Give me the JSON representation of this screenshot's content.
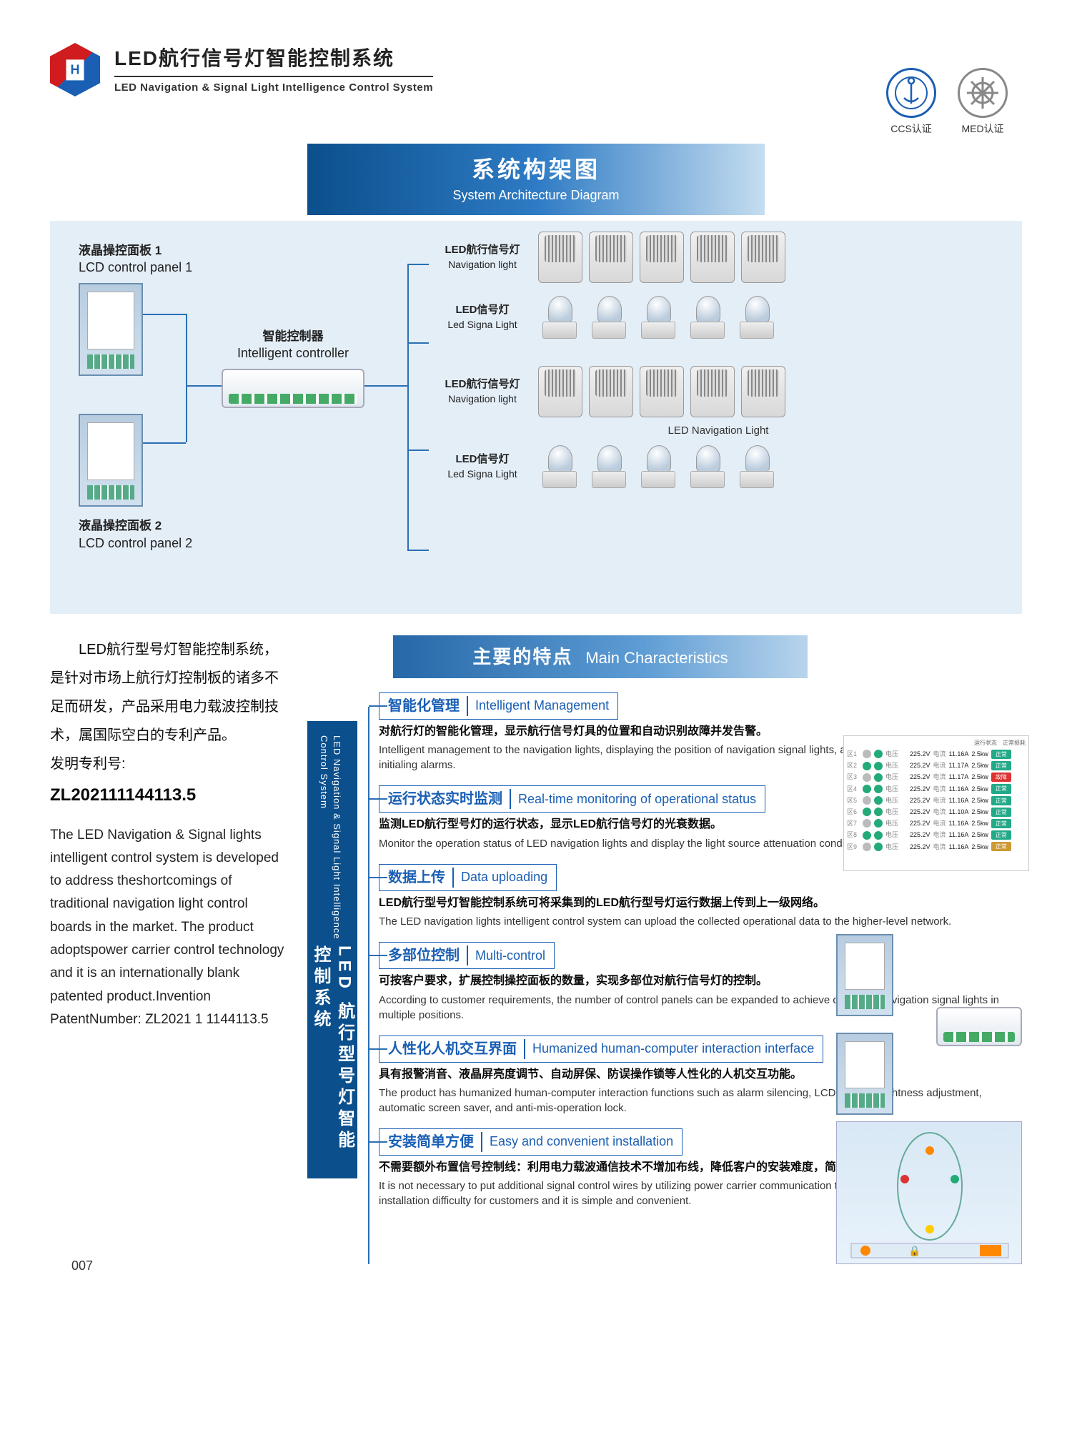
{
  "header": {
    "logo_letter": "H",
    "title_cn": "LED航行信号灯智能控制系统",
    "title_en": "LED Navigation & Signal Light Intelligence Control System"
  },
  "banner": {
    "cn": "系统构架图",
    "en": "System Architecture Diagram"
  },
  "certs": {
    "ccs": "CCS认证",
    "med": "MED认证"
  },
  "diagram": {
    "panel1_cn": "液晶操控面板 1",
    "panel1_en": "LCD control panel 1",
    "panel2_cn": "液晶操控面板 2",
    "panel2_en": "LCD control panel 2",
    "controller_cn": "智能控制器",
    "controller_en": "Intelligent controller",
    "nav_cn": "LED航行信号灯",
    "nav_en": "Navigation light",
    "sig_cn": "LED信号灯",
    "sig_en": "Led Signa  Light",
    "caption_nav": "LED  Navigation Light",
    "lights_per_row": 5
  },
  "intro": {
    "p1_cn": "　　LED航行型号灯智能控制系统，是针对市场上航行灯控制板的诸多不足而研发，产品采用电力载波控制技术，属国际空白的专利产品。",
    "patent_label": "发明专利号:",
    "patent_number": "ZL202111144113.5",
    "p1_en": "The LED Navigation & Signal lights intelligent control system is developed to address theshortcomings of traditional navigation light control boards in the market. The product adoptspower carrier control technology and it is an internationally blank patented product.Invention PatentNumber: ZL2021 1 1144113.5"
  },
  "sub_banner": {
    "cn": "主要的特点",
    "en": "Main Characteristics"
  },
  "vert_bar": {
    "cn": "LED 航行型号灯智能控制系统",
    "en": "LED Navigation & Signal Light Intelligence Control System"
  },
  "features": [
    {
      "title_cn": "智能化管理",
      "title_en": "Intelligent Management",
      "desc_cn": "对航行灯的智能化管理，显示航行信号灯具的位置和自动识别故障并发告警。",
      "desc_en": "Intelligent management to the navigation lights, displaying the position of navigation signal lights, automatically identifying faults, and initialing alarms."
    },
    {
      "title_cn": "运行状态实时监测",
      "title_en": "Real-time monitoring of operational status",
      "desc_cn": "监测LED航行型号灯的运行状态，显示LED航行信号灯的光衰数据。",
      "desc_en": "Monitor the operation status of LED navigation  lights and display the light source attenuation condition."
    },
    {
      "title_cn": "数据上传",
      "title_en": "Data uploading",
      "desc_cn": "LED航行型号灯智能控制系统可将采集到的LED航行型号灯运行数据上传到上一级网络。",
      "desc_en": "The LED navigation lights intelligent control system can upload the collected operational data to the higher-level network."
    },
    {
      "title_cn": "多部位控制",
      "title_en": "Multi-control",
      "desc_cn": "可按客户要求，扩展控制操控面板的数量，实现多部位对航行信号灯的控制。",
      "desc_en": "According to customer requirements, the number of control panels can be expanded to achieve control of navigation signal lights in multiple positions."
    },
    {
      "title_cn": "人性化人机交互界面",
      "title_en": "Humanized human-computer interaction interface",
      "desc_cn": "具有报警消音、液晶屏亮度调节、自动屏保、防误操作锁等人性化的人机交互功能。",
      "desc_en": "The product has humanized human-computer interaction functions such as alarm silencing, LCD screen brightness adjustment, automatic screen saver, and anti-mis-operation lock."
    },
    {
      "title_cn": "安装简单方便",
      "title_en": "Easy and convenient installation",
      "desc_cn": "不需要额外布置信号控制线：利用电力载波通信技术不增加布线，降低客户的安装难度，简单方便。",
      "desc_en": "It is not necessary to put additional signal control wires by utilizing power carrier communication technology, which reduces the installation difficulty for customers and it is simple and convenient."
    }
  ],
  "status_rows": [
    {
      "v": "225.2V",
      "a": "11.16A",
      "p": "2.5kw",
      "c": "#2a8",
      "t": "正常"
    },
    {
      "v": "225.2V",
      "a": "11.17A",
      "p": "2.5kw",
      "c": "#2a8",
      "t": "正常"
    },
    {
      "v": "225.2V",
      "a": "11.17A",
      "p": "2.5kw",
      "c": "#d33",
      "t": "故障"
    },
    {
      "v": "225.2V",
      "a": "11.16A",
      "p": "2.5kw",
      "c": "#2a8",
      "t": "正常"
    },
    {
      "v": "225.2V",
      "a": "11.16A",
      "p": "2.5kw",
      "c": "#2a8",
      "t": "正常"
    },
    {
      "v": "225.2V",
      "a": "11.10A",
      "p": "2.5kw",
      "c": "#2a8",
      "t": "正常"
    },
    {
      "v": "225.2V",
      "a": "11.16A",
      "p": "2.5kw",
      "c": "#2a8",
      "t": "正常"
    },
    {
      "v": "225.2V",
      "a": "11.16A",
      "p": "2.5kw",
      "c": "#2a8",
      "t": "正常"
    },
    {
      "v": "225.2V",
      "a": "11.16A",
      "p": "2.5kw",
      "c": "#c93",
      "t": "正常"
    }
  ],
  "page_num": "007",
  "colors": {
    "primary_blue": "#0b4f8c",
    "accent_blue": "#1a5fb4",
    "line_blue": "#2a6fb5",
    "bg_light": "#e4eef7",
    "logo_red": "#d01c1f"
  }
}
